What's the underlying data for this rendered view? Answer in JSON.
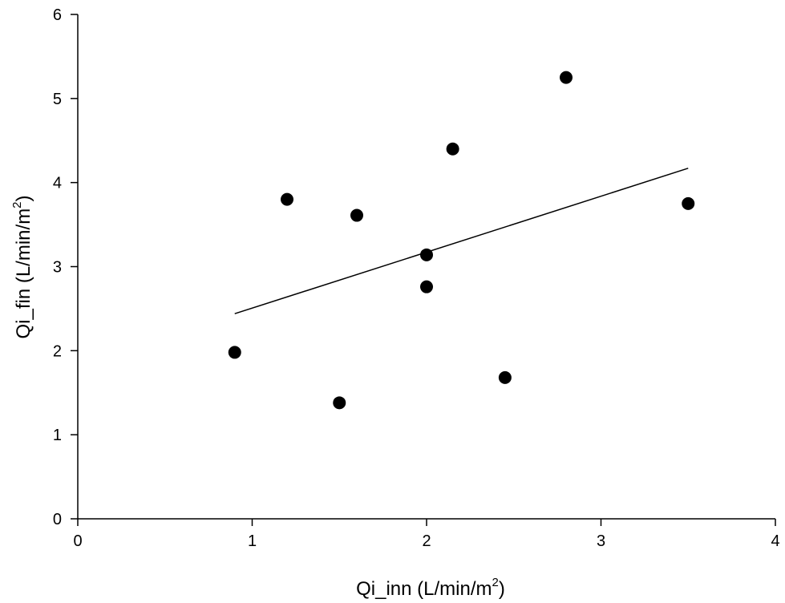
{
  "chart_data": {
    "type": "scatter",
    "title": "",
    "xlabel": "Qi_inn (L/min/m",
    "xlabel_superscript": "2",
    "xlabel_suffix": ")",
    "ylabel": "Qi_fin (L/min/m",
    "ylabel_superscript": "2",
    "ylabel_suffix": ")",
    "xlim": [
      0,
      4
    ],
    "ylim": [
      0,
      6
    ],
    "x_ticks": [
      0,
      1,
      2,
      3,
      4
    ],
    "y_ticks": [
      0,
      1,
      2,
      3,
      4,
      5,
      6
    ],
    "grid": false,
    "legend": "none",
    "marker_color": "#000000",
    "line_color": "#000000",
    "series": [
      {
        "points": [
          {
            "x": 0.9,
            "y": 1.98
          },
          {
            "x": 1.2,
            "y": 3.8
          },
          {
            "x": 1.5,
            "y": 1.38
          },
          {
            "x": 1.6,
            "y": 3.61
          },
          {
            "x": 2.0,
            "y": 3.14
          },
          {
            "x": 2.0,
            "y": 2.76
          },
          {
            "x": 2.15,
            "y": 4.4
          },
          {
            "x": 2.45,
            "y": 1.68
          },
          {
            "x": 2.8,
            "y": 5.25
          },
          {
            "x": 3.5,
            "y": 3.75
          }
        ]
      }
    ],
    "regression_line": {
      "x": [
        0.9,
        3.5
      ],
      "y": [
        2.44,
        4.17
      ]
    }
  }
}
